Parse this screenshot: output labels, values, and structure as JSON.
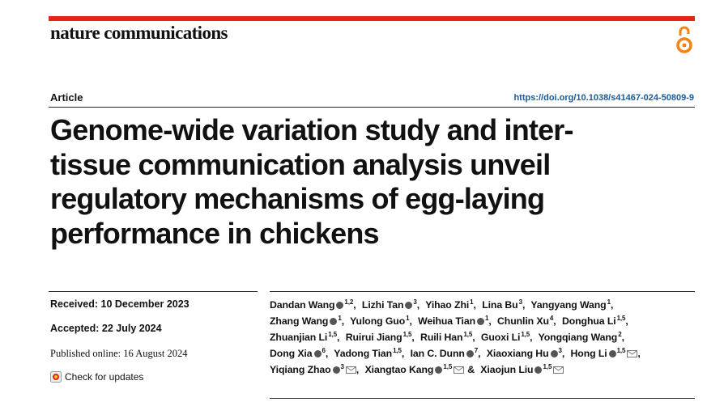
{
  "journal": "nature communications",
  "article_type": "Article",
  "doi": "https://doi.org/10.1038/s41467-024-50809-9",
  "title": "Genome-wide variation study and inter-tissue communication analysis unveil regulatory mechanisms of egg-laying performance in chickens",
  "received": "Received: 10 December 2023",
  "accepted": "Accepted: 22 July 2024",
  "published": "Published online: 16 August 2024",
  "check_updates": "Check for updates",
  "authors": [
    {
      "name": "Dandan Wang",
      "affiliations": "1,2",
      "orcid": true,
      "after": ","
    },
    {
      "name": "Lizhi Tan",
      "affiliations": "3",
      "orcid": true,
      "after": ","
    },
    {
      "name": "Yihao Zhi",
      "affiliations": "1",
      "after": ","
    },
    {
      "name": "Lina Bu",
      "affiliations": "3",
      "after": ","
    },
    {
      "name": "Yangyang Wang",
      "affiliations": "1",
      "after": ","
    },
    {
      "name": "Zhang Wang",
      "affiliations": "1",
      "orcid": true,
      "after": ","
    },
    {
      "name": "Yulong Guo",
      "affiliations": "1",
      "after": ","
    },
    {
      "name": "Weihua Tian",
      "affiliations": "1",
      "orcid": true,
      "after": ","
    },
    {
      "name": "Chunlin Xu",
      "affiliations": "4",
      "after": ","
    },
    {
      "name": "Donghua Li",
      "affiliations": "1,5",
      "after": ","
    },
    {
      "name": "Zhuanjian Li",
      "affiliations": "1,5",
      "after": ","
    },
    {
      "name": "Ruirui Jiang",
      "affiliations": "1,5",
      "after": ","
    },
    {
      "name": "Ruili Han",
      "affiliations": "1,5",
      "after": ","
    },
    {
      "name": "Guoxi Li",
      "affiliations": "1,5",
      "after": ","
    },
    {
      "name": "Yongqiang Wang",
      "affiliations": "2",
      "after": ","
    },
    {
      "name": "Dong Xia",
      "affiliations": "6",
      "orcid": true,
      "after": ","
    },
    {
      "name": "Yadong Tian",
      "affiliations": "1,5",
      "after": ","
    },
    {
      "name": "Ian C. Dunn",
      "affiliations": "7",
      "orcid": true,
      "after": ","
    },
    {
      "name": "Xiaoxiang Hu",
      "affiliations": "3",
      "orcid": true,
      "after": ","
    },
    {
      "name": "Hong Li",
      "affiliations": "1,5",
      "orcid": true,
      "corresponding": true,
      "after": ","
    },
    {
      "name": "Yiqiang Zhao",
      "affiliations": "3",
      "orcid": true,
      "corresponding": true,
      "after": ","
    },
    {
      "name": "Xiangtao Kang",
      "affiliations": "1,5",
      "orcid": true,
      "corresponding": true,
      "after": "&"
    },
    {
      "name": "Xiaojun Liu",
      "affiliations": "1,5",
      "orcid": true,
      "corresponding": true
    }
  ]
}
